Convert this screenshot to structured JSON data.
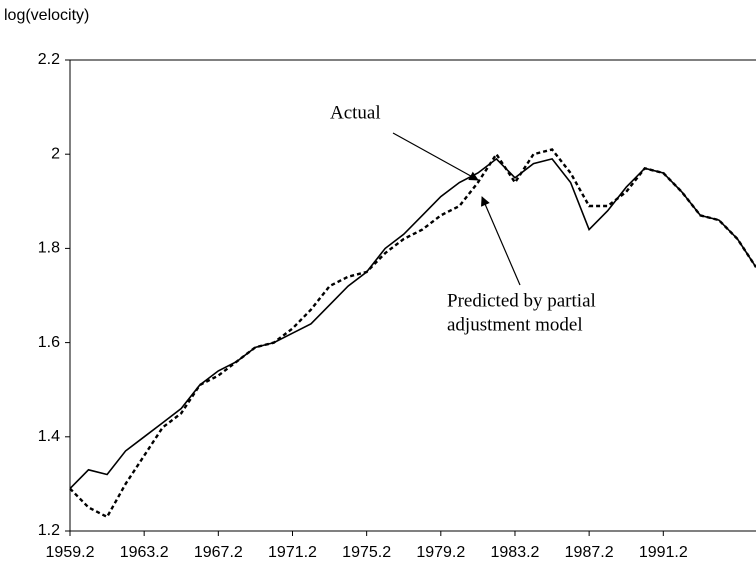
{
  "chart_data": {
    "type": "line",
    "ylabel": "log(velocity)",
    "x": [
      1959.25,
      1960.25,
      1961.25,
      1962.25,
      1963.25,
      1964.25,
      1965.25,
      1966.25,
      1967.25,
      1968.25,
      1969.25,
      1970.25,
      1971.25,
      1972.25,
      1973.25,
      1974.25,
      1975.25,
      1976.25,
      1977.25,
      1978.25,
      1979.25,
      1980.25,
      1981.25,
      1982.25,
      1983.25,
      1984.25,
      1985.25,
      1986.25,
      1987.25,
      1988.25,
      1989.25,
      1990.25,
      1991.25,
      1992.25,
      1993.25,
      1994.25,
      1995.25,
      1996.25
    ],
    "series": [
      {
        "name": "Actual",
        "color": "#000000",
        "linestyle": "solid",
        "values": [
          1.29,
          1.33,
          1.32,
          1.37,
          1.4,
          1.43,
          1.46,
          1.51,
          1.54,
          1.56,
          1.59,
          1.6,
          1.62,
          1.64,
          1.68,
          1.72,
          1.75,
          1.8,
          1.83,
          1.87,
          1.91,
          1.94,
          1.96,
          1.99,
          1.95,
          1.98,
          1.99,
          1.94,
          1.84,
          1.88,
          1.93,
          1.97,
          1.96,
          1.92,
          1.87,
          1.86,
          1.82,
          1.76
        ]
      },
      {
        "name": "Predicted by partial adjustment model",
        "color": "#000000",
        "linestyle": "dashed",
        "values": [
          1.29,
          1.25,
          1.23,
          1.3,
          1.36,
          1.42,
          1.45,
          1.51,
          1.53,
          1.56,
          1.59,
          1.6,
          1.63,
          1.67,
          1.72,
          1.74,
          1.75,
          1.79,
          1.82,
          1.84,
          1.87,
          1.89,
          1.94,
          2.0,
          1.94,
          2.0,
          2.01,
          1.96,
          1.89,
          1.89,
          1.92,
          1.97,
          1.96,
          1.92,
          1.87,
          1.86,
          1.82,
          1.76
        ]
      }
    ],
    "annotations": [
      {
        "lines": [
          "Actual"
        ]
      },
      {
        "lines": [
          "Predicted by partial",
          "adjustment model"
        ]
      }
    ],
    "xlim": [
      1959.25,
      1996.25
    ],
    "xticks": [
      {
        "value": 1959.25,
        "label": "1959.2"
      },
      {
        "value": 1963.25,
        "label": "1963.2"
      },
      {
        "value": 1967.25,
        "label": "1967.2"
      },
      {
        "value": 1971.25,
        "label": "1971.2"
      },
      {
        "value": 1975.25,
        "label": "1975.2"
      },
      {
        "value": 1979.25,
        "label": "1979.2"
      },
      {
        "value": 1983.25,
        "label": "1983.2"
      },
      {
        "value": 1987.25,
        "label": "1987.2"
      },
      {
        "value": 1991.25,
        "label": "1991.2"
      }
    ],
    "ylim": [
      1.2,
      2.2
    ],
    "yticks": [
      1.2,
      1.4,
      1.6,
      1.8,
      2,
      2.2
    ],
    "grid": false
  }
}
